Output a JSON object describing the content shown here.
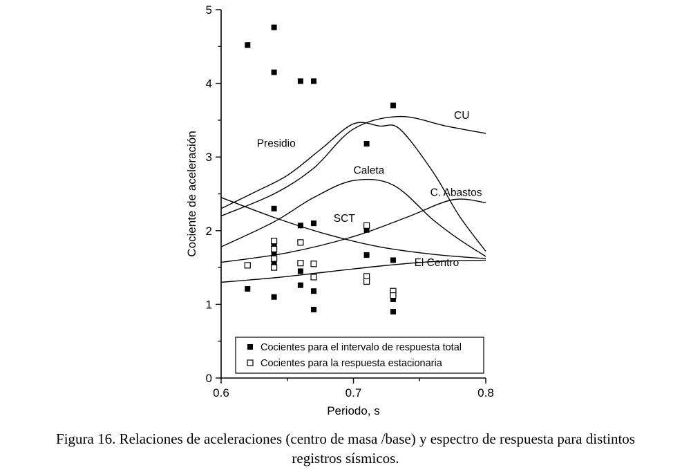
{
  "figure": {
    "caption_line1": "Figura 16. Relaciones de aceleraciones (centro de masa /base) y espectro de respuesta para distintos",
    "caption_line2": "registros sísmicos."
  },
  "colors": {
    "line": "#000000",
    "marker_filled": "#000000",
    "marker_open_fill": "#ffffff",
    "background": "#ffffff"
  },
  "chart_data": {
    "type": "line+scatter",
    "title": "",
    "xlabel": "Periodo, s",
    "ylabel": "Cociente de aceleración",
    "xlim": [
      0.6,
      0.8
    ],
    "ylim": [
      0,
      5
    ],
    "xticks": [
      0.6,
      0.7,
      0.8
    ],
    "yticks": [
      0,
      1,
      2,
      3,
      4,
      5
    ],
    "x_minor_step": 0.05,
    "y_minor_step": 0.5,
    "grid": false,
    "series": [
      {
        "name": "Presidio",
        "points": [
          [
            0.6,
            2.3
          ],
          [
            0.625,
            2.52
          ],
          [
            0.65,
            2.75
          ],
          [
            0.675,
            3.1
          ],
          [
            0.7,
            3.45
          ],
          [
            0.72,
            3.42
          ],
          [
            0.735,
            3.38
          ],
          [
            0.76,
            2.8
          ],
          [
            0.78,
            2.2
          ],
          [
            0.8,
            1.72
          ]
        ]
      },
      {
        "name": "CU",
        "points": [
          [
            0.6,
            2.2
          ],
          [
            0.64,
            2.5
          ],
          [
            0.67,
            2.85
          ],
          [
            0.7,
            3.38
          ],
          [
            0.735,
            3.55
          ],
          [
            0.77,
            3.42
          ],
          [
            0.8,
            3.32
          ]
        ]
      },
      {
        "name": "Caleta",
        "points": [
          [
            0.6,
            1.78
          ],
          [
            0.64,
            2.12
          ],
          [
            0.67,
            2.45
          ],
          [
            0.7,
            2.68
          ],
          [
            0.73,
            2.62
          ],
          [
            0.76,
            2.15
          ],
          [
            0.78,
            1.88
          ],
          [
            0.8,
            1.65
          ]
        ]
      },
      {
        "name": "C. Abastos",
        "points": [
          [
            0.6,
            1.57
          ],
          [
            0.65,
            1.7
          ],
          [
            0.7,
            1.92
          ],
          [
            0.74,
            2.18
          ],
          [
            0.775,
            2.42
          ],
          [
            0.8,
            2.38
          ]
        ]
      },
      {
        "name": "SCT",
        "points": [
          [
            0.6,
            2.45
          ],
          [
            0.64,
            2.18
          ],
          [
            0.68,
            1.95
          ],
          [
            0.72,
            1.78
          ],
          [
            0.76,
            1.68
          ],
          [
            0.8,
            1.62
          ]
        ]
      },
      {
        "name": "El Centro",
        "points": [
          [
            0.6,
            1.3
          ],
          [
            0.64,
            1.36
          ],
          [
            0.68,
            1.44
          ],
          [
            0.72,
            1.52
          ],
          [
            0.76,
            1.58
          ],
          [
            0.8,
            1.6
          ]
        ]
      }
    ],
    "series_labels": [
      {
        "text": "Presidio",
        "x": 0.627,
        "y": 3.14
      },
      {
        "text": "CU",
        "x": 0.776,
        "y": 3.52
      },
      {
        "text": "Caleta",
        "x": 0.7,
        "y": 2.77
      },
      {
        "text": "C. Abastos",
        "x": 0.758,
        "y": 2.47
      },
      {
        "text": "SCT",
        "x": 0.685,
        "y": 2.12
      },
      {
        "text": "El Centro",
        "x": 0.746,
        "y": 1.52
      }
    ],
    "scatter": [
      {
        "name": "Cocientes para el intervalo de respuesta total",
        "marker": "filled-square",
        "points": [
          [
            0.62,
            4.52
          ],
          [
            0.62,
            1.21
          ],
          [
            0.64,
            4.76
          ],
          [
            0.64,
            4.15
          ],
          [
            0.64,
            2.3
          ],
          [
            0.64,
            1.82
          ],
          [
            0.64,
            1.7
          ],
          [
            0.64,
            1.57
          ],
          [
            0.64,
            1.1
          ],
          [
            0.66,
            4.03
          ],
          [
            0.66,
            2.07
          ],
          [
            0.66,
            1.45
          ],
          [
            0.66,
            1.26
          ],
          [
            0.67,
            4.03
          ],
          [
            0.67,
            2.1
          ],
          [
            0.67,
            1.18
          ],
          [
            0.67,
            0.93
          ],
          [
            0.71,
            3.18
          ],
          [
            0.71,
            2.01
          ],
          [
            0.71,
            1.67
          ],
          [
            0.73,
            3.7
          ],
          [
            0.73,
            1.6
          ],
          [
            0.73,
            1.15
          ],
          [
            0.73,
            1.07
          ],
          [
            0.73,
            0.9
          ]
        ]
      },
      {
        "name": "Cocientes para la respuesta estacionaria",
        "marker": "open-square",
        "points": [
          [
            0.62,
            1.53
          ],
          [
            0.64,
            1.86
          ],
          [
            0.64,
            1.75
          ],
          [
            0.64,
            1.62
          ],
          [
            0.64,
            1.5
          ],
          [
            0.66,
            1.84
          ],
          [
            0.66,
            1.56
          ],
          [
            0.67,
            1.55
          ],
          [
            0.67,
            1.37
          ],
          [
            0.71,
            2.07
          ],
          [
            0.71,
            1.38
          ],
          [
            0.71,
            1.31
          ],
          [
            0.73,
            1.18
          ],
          [
            0.73,
            1.12
          ]
        ]
      }
    ],
    "legend": {
      "position": "bottom-inside",
      "items": [
        {
          "marker": "filled-square",
          "label": "Cocientes para el intervalo de respuesta total"
        },
        {
          "marker": "open-square",
          "label": "Cocientes para la respuesta estacionaria"
        }
      ]
    }
  }
}
